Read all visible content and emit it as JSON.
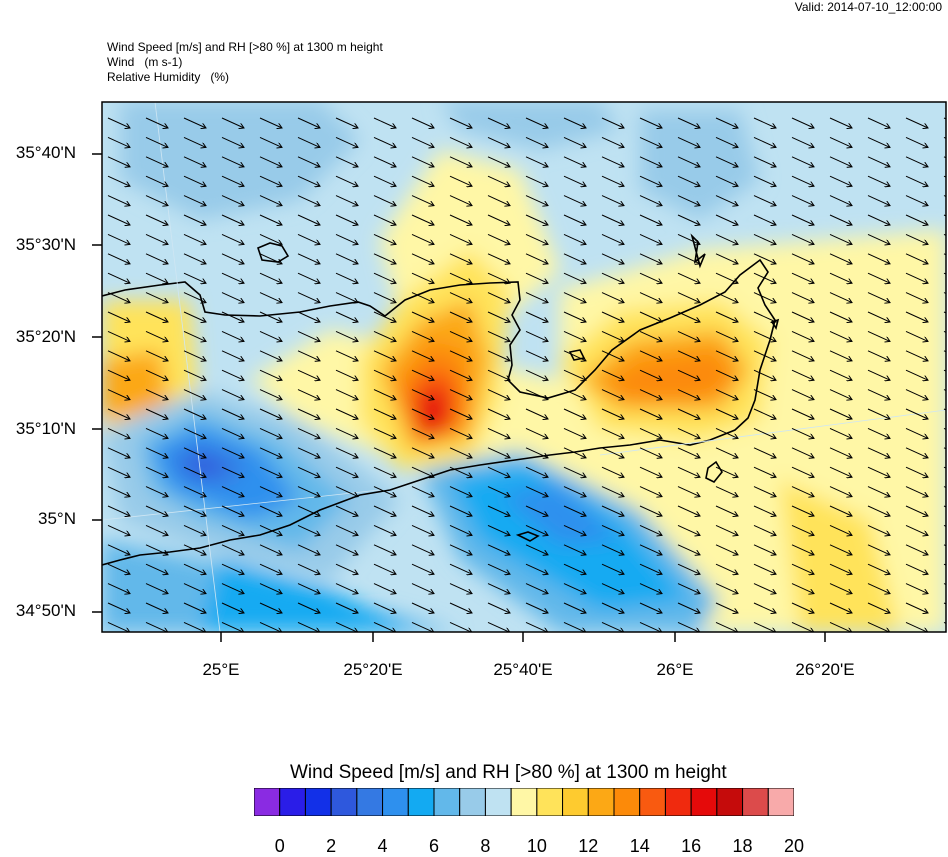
{
  "valid_label": "Valid: 2014-07-10_12:00:00",
  "header": {
    "line1": "Wind Speed [m/s] and RH [>80 %] at 1300 m height",
    "line2": "Wind   (m s-1)",
    "line3": "Relative Humidity   (%)"
  },
  "lat_labels": [
    "35°40'N",
    "35°30'N",
    "35°20'N",
    "35°10'N",
    "35°N",
    "34°50'N"
  ],
  "lon_labels": [
    "25°E",
    "25°20'E",
    "25°40'E",
    "26°E",
    "26°20'E"
  ],
  "colorbar": {
    "title": "Wind Speed [m/s] and RH [>80 %] at 1300 m height",
    "tick_labels": [
      "0",
      "2",
      "4",
      "6",
      "8",
      "10",
      "12",
      "14",
      "16",
      "18",
      "20"
    ],
    "colors": [
      "#8a2be2",
      "#2a1de8",
      "#1230e8",
      "#2e58dd",
      "#3479e3",
      "#2e90ee",
      "#13aaf2",
      "#62b8ea",
      "#98cbe9",
      "#bfe2f2",
      "#fff7a6",
      "#ffe35a",
      "#fecb2f",
      "#fca815",
      "#fc8a09",
      "#f95a10",
      "#f02a0e",
      "#e50a0a",
      "#c50b0b",
      "#dc4b4b",
      "#f8aaaa"
    ]
  }
}
